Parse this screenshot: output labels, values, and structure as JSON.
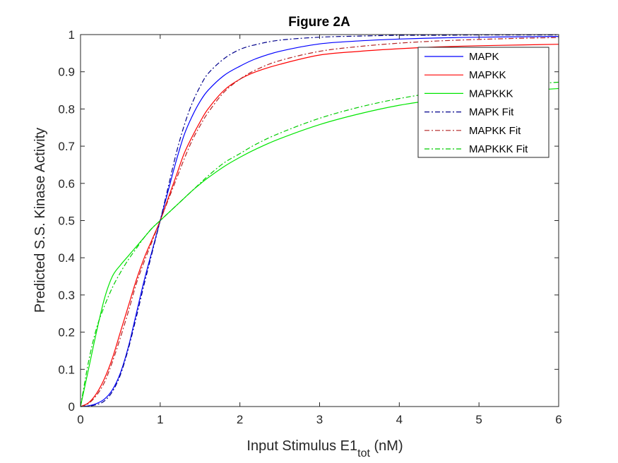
{
  "chart_data": {
    "type": "line",
    "title": "Figure 2A",
    "xlabel_main": "Input Stimulus E1",
    "xlabel_sub": "tot",
    "xlabel_unit": " (nM)",
    "ylabel": "Predicted S.S. Kinase Activity",
    "xlim": [
      0,
      6
    ],
    "ylim": [
      0,
      1
    ],
    "x_ticks": [
      "0",
      "1",
      "2",
      "3",
      "4",
      "5",
      "6"
    ],
    "y_ticks": [
      "0",
      "0.1",
      "0.2",
      "0.3",
      "0.4",
      "0.5",
      "0.6",
      "0.7",
      "0.8",
      "0.9",
      "1"
    ],
    "grid": false,
    "legend_position": "top-right",
    "x": [
      0,
      0.1,
      0.2,
      0.3,
      0.4,
      0.5,
      0.6,
      0.7,
      0.8,
      0.9,
      1.0,
      1.1,
      1.2,
      1.3,
      1.4,
      1.5,
      1.6,
      1.8,
      2.0,
      2.2,
      2.5,
      3.0,
      3.5,
      4.0,
      4.5,
      5.0,
      5.5,
      6.0
    ],
    "series": [
      {
        "name": "MAPK",
        "color": "#0000ff",
        "dash": "solid",
        "values": [
          0,
          0.002,
          0.008,
          0.02,
          0.045,
          0.09,
          0.16,
          0.25,
          0.34,
          0.42,
          0.5,
          0.58,
          0.66,
          0.73,
          0.78,
          0.82,
          0.85,
          0.89,
          0.915,
          0.935,
          0.955,
          0.975,
          0.983,
          0.988,
          0.991,
          0.993,
          0.994,
          0.995
        ]
      },
      {
        "name": "MAPKK",
        "color": "#ff0000",
        "dash": "solid",
        "values": [
          0,
          0.01,
          0.035,
          0.075,
          0.13,
          0.2,
          0.27,
          0.34,
          0.4,
          0.45,
          0.5,
          0.56,
          0.62,
          0.68,
          0.725,
          0.765,
          0.8,
          0.85,
          0.88,
          0.9,
          0.92,
          0.945,
          0.955,
          0.962,
          0.967,
          0.97,
          0.972,
          0.974
        ]
      },
      {
        "name": "MAPKKK",
        "color": "#00e600",
        "dash": "solid",
        "values": [
          0,
          0.1,
          0.2,
          0.29,
          0.35,
          0.38,
          0.405,
          0.43,
          0.455,
          0.48,
          0.5,
          0.52,
          0.54,
          0.56,
          0.58,
          0.598,
          0.615,
          0.645,
          0.67,
          0.692,
          0.72,
          0.758,
          0.787,
          0.81,
          0.826,
          0.84,
          0.848,
          0.855
        ]
      },
      {
        "name": "MAPK Fit",
        "color": "#00008b",
        "dash": "dashdot",
        "values": [
          0,
          0.001,
          0.005,
          0.015,
          0.04,
          0.085,
          0.155,
          0.24,
          0.33,
          0.415,
          0.5,
          0.59,
          0.68,
          0.755,
          0.815,
          0.86,
          0.895,
          0.935,
          0.96,
          0.973,
          0.985,
          0.993,
          0.996,
          0.998,
          0.998,
          0.999,
          0.999,
          0.999
        ]
      },
      {
        "name": "MAPKK Fit",
        "color": "#b22222",
        "dash": "dashdot",
        "values": [
          0,
          0.008,
          0.03,
          0.065,
          0.12,
          0.185,
          0.255,
          0.33,
          0.39,
          0.445,
          0.5,
          0.555,
          0.61,
          0.665,
          0.715,
          0.755,
          0.79,
          0.845,
          0.88,
          0.905,
          0.93,
          0.955,
          0.968,
          0.977,
          0.983,
          0.987,
          0.99,
          0.992
        ]
      },
      {
        "name": "MAPKKK Fit",
        "color": "#00cc00",
        "dash": "dashdot",
        "values": [
          0,
          0.12,
          0.21,
          0.27,
          0.32,
          0.36,
          0.395,
          0.425,
          0.455,
          0.48,
          0.5,
          0.52,
          0.54,
          0.56,
          0.58,
          0.6,
          0.62,
          0.655,
          0.68,
          0.705,
          0.735,
          0.775,
          0.805,
          0.828,
          0.845,
          0.855,
          0.865,
          0.872
        ]
      }
    ]
  }
}
